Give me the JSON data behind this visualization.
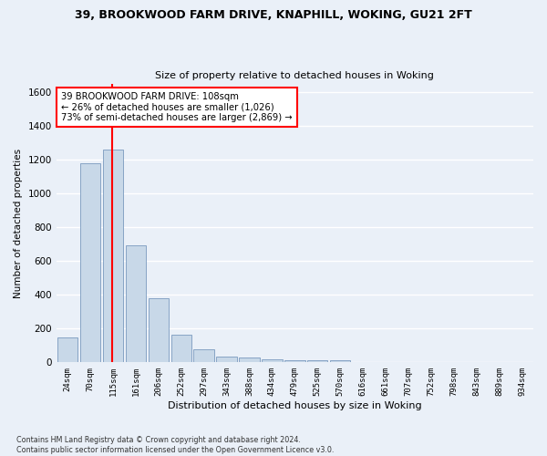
{
  "title_line1": "39, BROOKWOOD FARM DRIVE, KNAPHILL, WOKING, GU21 2FT",
  "title_line2": "Size of property relative to detached houses in Woking",
  "xlabel": "Distribution of detached houses by size in Woking",
  "ylabel": "Number of detached properties",
  "footnote": "Contains HM Land Registry data © Crown copyright and database right 2024.\nContains public sector information licensed under the Open Government Licence v3.0.",
  "bar_labels": [
    "24sqm",
    "70sqm",
    "115sqm",
    "161sqm",
    "206sqm",
    "252sqm",
    "297sqm",
    "343sqm",
    "388sqm",
    "434sqm",
    "479sqm",
    "525sqm",
    "570sqm",
    "616sqm",
    "661sqm",
    "707sqm",
    "752sqm",
    "798sqm",
    "843sqm",
    "889sqm",
    "934sqm"
  ],
  "bar_values": [
    145,
    1180,
    1260,
    690,
    380,
    165,
    80,
    35,
    30,
    20,
    15,
    15,
    12,
    0,
    0,
    0,
    0,
    0,
    0,
    0,
    0
  ],
  "bar_color": "#c8d8e8",
  "bar_edge_color": "#7a9abf",
  "property_line_x": 2,
  "annotation_text": "39 BROOKWOOD FARM DRIVE: 108sqm\n← 26% of detached houses are smaller (1,026)\n73% of semi-detached houses are larger (2,869) →",
  "annotation_box_color": "white",
  "annotation_box_edge_color": "red",
  "line_color": "red",
  "ylim": [
    0,
    1650
  ],
  "yticks": [
    0,
    200,
    400,
    600,
    800,
    1000,
    1200,
    1400,
    1600
  ],
  "bg_color": "#eaf0f8",
  "grid_color": "white"
}
